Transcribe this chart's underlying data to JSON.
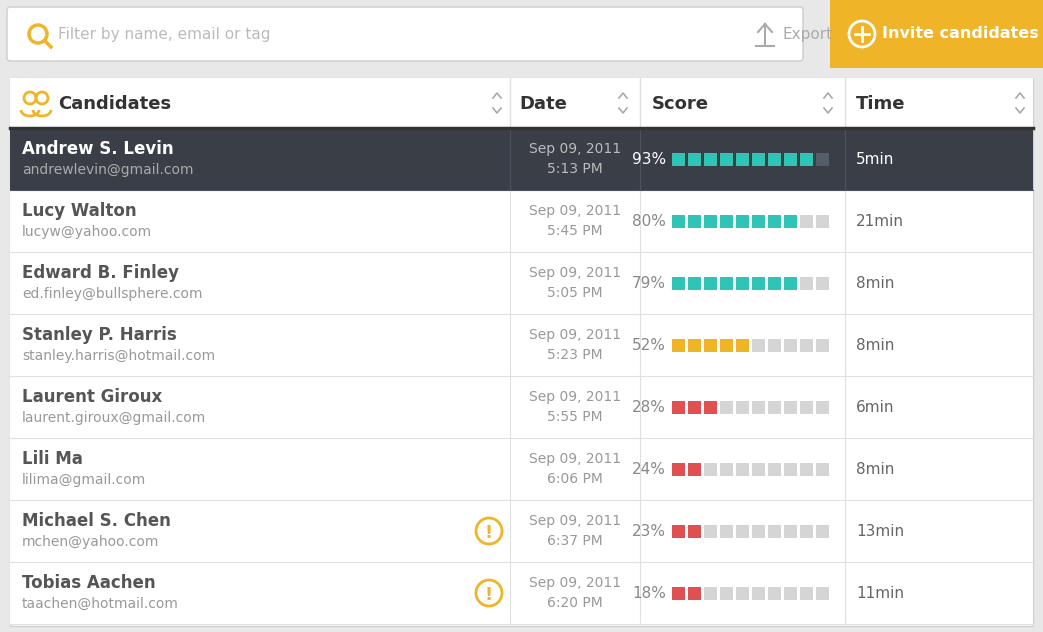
{
  "bg_color": "#e8e8e8",
  "search_bg": "#ffffff",
  "invite_btn_color": "#f0b429",
  "invite_btn_text": "Invite candidates",
  "export_text": "Export",
  "filter_placeholder": "Filter by name, email or tag",
  "selected_row_bg": "#3a3f47",
  "divider_color": "#e0e0e0",
  "col_headers": [
    "Candidates",
    "Date",
    "Score",
    "Time"
  ],
  "warning_color": "#f0b429",
  "candidates": [
    {
      "name": "Andrew S. Levin",
      "email": "andrewlevin@gmail.com",
      "date": "Sep 09, 2011\n5:13 PM",
      "score": 93,
      "score_text": "93%",
      "time": "5min",
      "selected": true,
      "warning": false,
      "bar_color": "#2ec4b6",
      "name_color": "#ffffff",
      "email_color": "#aaaaaa",
      "date_color": "#bbbbbb",
      "score_color": "#ffffff",
      "time_color": "#ffffff"
    },
    {
      "name": "Lucy Walton",
      "email": "lucyw@yahoo.com",
      "date": "Sep 09, 2011\n5:45 PM",
      "score": 80,
      "score_text": "80%",
      "time": "21min",
      "selected": false,
      "warning": false,
      "bar_color": "#2ec4b6",
      "name_color": "#555555",
      "email_color": "#999999",
      "date_color": "#999999",
      "score_color": "#888888",
      "time_color": "#666666"
    },
    {
      "name": "Edward B. Finley",
      "email": "ed.finley@bullsphere.com",
      "date": "Sep 09, 2011\n5:05 PM",
      "score": 79,
      "score_text": "79%",
      "time": "8min",
      "selected": false,
      "warning": false,
      "bar_color": "#2ec4b6",
      "name_color": "#555555",
      "email_color": "#999999",
      "date_color": "#999999",
      "score_color": "#888888",
      "time_color": "#666666"
    },
    {
      "name": "Stanley P. Harris",
      "email": "stanley.harris@hotmail.com",
      "date": "Sep 09, 2011\n5:23 PM",
      "score": 52,
      "score_text": "52%",
      "time": "8min",
      "selected": false,
      "warning": false,
      "bar_color": "#f0b429",
      "name_color": "#555555",
      "email_color": "#999999",
      "date_color": "#999999",
      "score_color": "#888888",
      "time_color": "#666666"
    },
    {
      "name": "Laurent Giroux",
      "email": "laurent.giroux@gmail.com",
      "date": "Sep 09, 2011\n5:55 PM",
      "score": 28,
      "score_text": "28%",
      "time": "6min",
      "selected": false,
      "warning": false,
      "bar_color": "#e05050",
      "name_color": "#555555",
      "email_color": "#999999",
      "date_color": "#999999",
      "score_color": "#888888",
      "time_color": "#666666"
    },
    {
      "name": "Lili Ma",
      "email": "lilima@gmail.com",
      "date": "Sep 09, 2011\n6:06 PM",
      "score": 24,
      "score_text": "24%",
      "time": "8min",
      "selected": false,
      "warning": false,
      "bar_color": "#e05050",
      "name_color": "#555555",
      "email_color": "#999999",
      "date_color": "#999999",
      "score_color": "#888888",
      "time_color": "#666666"
    },
    {
      "name": "Michael S. Chen",
      "email": "mchen@yahoo.com",
      "date": "Sep 09, 2011\n6:37 PM",
      "score": 23,
      "score_text": "23%",
      "time": "13min",
      "selected": false,
      "warning": true,
      "bar_color": "#e05050",
      "name_color": "#555555",
      "email_color": "#999999",
      "date_color": "#999999",
      "score_color": "#888888",
      "time_color": "#666666"
    },
    {
      "name": "Tobias Aachen",
      "email": "taachen@hotmail.com",
      "date": "Sep 09, 2011\n6:20 PM",
      "score": 18,
      "score_text": "18%",
      "time": "11min",
      "selected": false,
      "warning": true,
      "bar_color": "#e05050",
      "name_color": "#555555",
      "email_color": "#999999",
      "date_color": "#999999",
      "score_color": "#888888",
      "time_color": "#666666"
    }
  ],
  "num_blocks": 10,
  "empty_block_color_light": "#d5d5d5",
  "empty_block_color_dark": "#555c6a"
}
